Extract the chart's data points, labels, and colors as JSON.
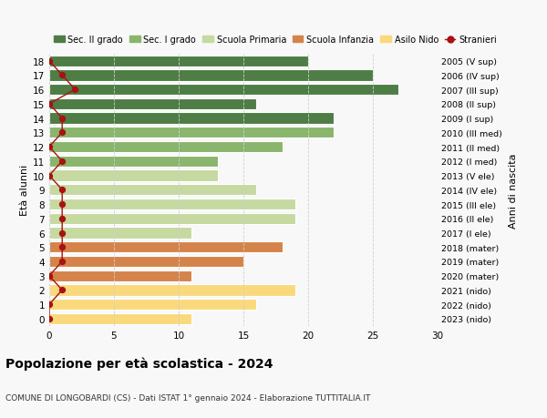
{
  "ages": [
    0,
    1,
    2,
    3,
    4,
    5,
    6,
    7,
    8,
    9,
    10,
    11,
    12,
    13,
    14,
    15,
    16,
    17,
    18
  ],
  "bar_values": [
    11,
    16,
    19,
    11,
    15,
    18,
    11,
    19,
    19,
    16,
    13,
    13,
    18,
    22,
    22,
    16,
    27,
    25,
    20
  ],
  "color_per_age": [
    "#f9d97c",
    "#f9d97c",
    "#f9d97c",
    "#d4844a",
    "#d4844a",
    "#d4844a",
    "#c5d9a0",
    "#c5d9a0",
    "#c5d9a0",
    "#c5d9a0",
    "#c5d9a0",
    "#8ab56c",
    "#8ab56c",
    "#8ab56c",
    "#4e7d45",
    "#4e7d45",
    "#4e7d45",
    "#4e7d45",
    "#4e7d45"
  ],
  "stranieri_color": "#aa1111",
  "stranieri_x_values": [
    0,
    0,
    1,
    0,
    1,
    1,
    1,
    1,
    1,
    1,
    0,
    1,
    0,
    1,
    1,
    0,
    2,
    1,
    0
  ],
  "right_labels": [
    "2023 (nido)",
    "2022 (nido)",
    "2021 (nido)",
    "2020 (mater)",
    "2019 (mater)",
    "2018 (mater)",
    "2017 (I ele)",
    "2016 (II ele)",
    "2015 (III ele)",
    "2014 (IV ele)",
    "2013 (V ele)",
    "2012 (I med)",
    "2011 (II med)",
    "2010 (III med)",
    "2009 (I sup)",
    "2008 (II sup)",
    "2007 (III sup)",
    "2006 (IV sup)",
    "2005 (V sup)"
  ],
  "legend_labels": [
    "Sec. II grado",
    "Sec. I grado",
    "Scuola Primaria",
    "Scuola Infanzia",
    "Asilo Nido",
    "Stranieri"
  ],
  "legend_colors": [
    "#4e7d45",
    "#8ab56c",
    "#c5d9a0",
    "#d4844a",
    "#f9d97c",
    "#aa1111"
  ],
  "ylabel": "Età alunni",
  "right_ylabel": "Anni di nascita",
  "title": "Popolazione per età scolastica - 2024",
  "subtitle": "COMUNE DI LONGOBARDI (CS) - Dati ISTAT 1° gennaio 2024 - Elaborazione TUTTITALIA.IT",
  "xlim": [
    0,
    30
  ],
  "background_color": "#f8f8f8",
  "grid_color": "#d0d0d0"
}
